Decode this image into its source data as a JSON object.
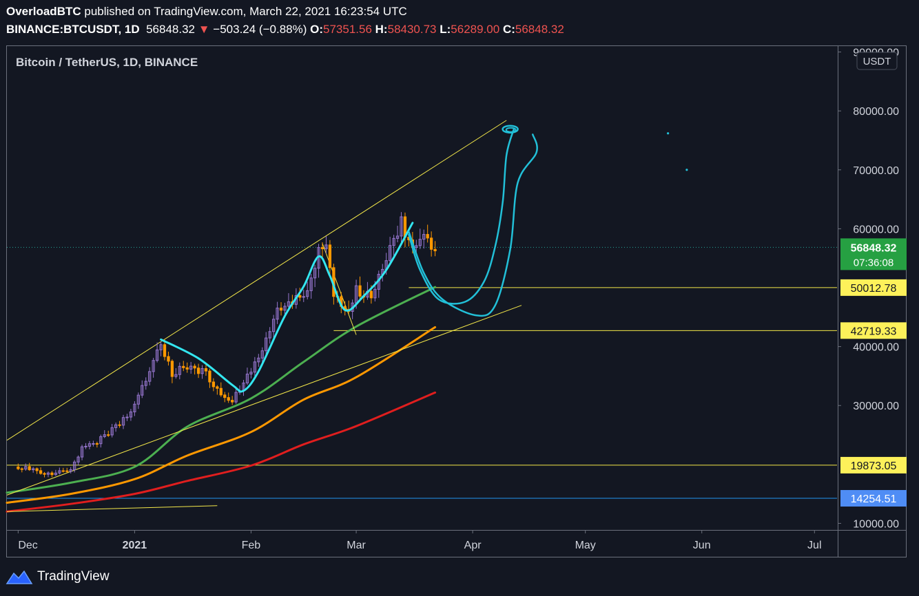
{
  "header": {
    "author": "OverloadBTC",
    "published_text": "published on TradingView.com, March 22, 2021 16:23:54 UTC",
    "symbol": "BINANCE:BTCUSDT, 1D",
    "last": "56848.32",
    "change_arrow": "▼",
    "change": "−503.24 (−0.88%)",
    "o_label": "O:",
    "o_value": "57351.56",
    "h_label": "H:",
    "h_value": "58430.73",
    "l_label": "L:",
    "l_value": "56289.00",
    "c_label": "C:",
    "c_value": "56848.32"
  },
  "footer": {
    "brand": "TradingView"
  },
  "colors": {
    "background": "#131722",
    "up": "#9575cd",
    "down": "#ff9800",
    "ma50": "#4caf50",
    "ma100": "#ff9800",
    "ma200": "#e01e1e",
    "trend": "#f5e94a",
    "drawing": "#22c0d8",
    "drawing_bright": "#33e6f0",
    "last_price_bg": "#26a042",
    "level_bg": "#fdf15a",
    "support_bg": "#4f8df5"
  },
  "chart_data": {
    "type": "candlestick",
    "title": "Bitcoin / TetherUS, 1D, BINANCE",
    "currency_badge": "USDT",
    "x_ticks": [
      "Dec",
      "2021",
      "Feb",
      "Mar",
      "Apr",
      "May",
      "Jun",
      "Jul"
    ],
    "x_tick_dates": [
      "2020-12-01",
      "2021-01-01",
      "2021-02-01",
      "2021-03-01",
      "2021-04-01",
      "2021-05-01",
      "2021-06-01",
      "2021-07-01"
    ],
    "x_range": [
      "2020-11-28",
      "2021-07-07"
    ],
    "y_ticks": [
      10000,
      30000,
      40000,
      60000,
      70000,
      80000,
      90000
    ],
    "y_tick_labels": [
      "10000.00",
      "30000.00",
      "40000.00",
      "60000.00",
      "70000.00",
      "80000.00",
      "90000.00"
    ],
    "ylim": [
      9000,
      91000
    ],
    "last_price": {
      "value": 56848.32,
      "label": "56848.32",
      "countdown": "07:36:08"
    },
    "price_levels": [
      {
        "value": 50012.78,
        "label": "50012.78",
        "from": "2021-03-15"
      },
      {
        "value": 42719.33,
        "label": "42719.33",
        "from": "2021-02-23"
      },
      {
        "value": 19873.05,
        "label": "19873.05",
        "from": "2020-11-28"
      },
      {
        "value": 14254.51,
        "label": "14254.51",
        "from": "2020-11-28"
      }
    ],
    "close_anchors": [
      [
        "2020-11-30",
        19700
      ],
      [
        "2020-12-05",
        19150
      ],
      [
        "2020-12-10",
        18250
      ],
      [
        "2020-12-15",
        19300
      ],
      [
        "2020-12-18",
        22800
      ],
      [
        "2020-12-22",
        23800
      ],
      [
        "2020-12-27",
        26300
      ],
      [
        "2020-12-31",
        29000
      ],
      [
        "2021-01-03",
        33000
      ],
      [
        "2021-01-08",
        40700
      ],
      [
        "2021-01-11",
        35500
      ],
      [
        "2021-01-15",
        36800
      ],
      [
        "2021-01-20",
        35500
      ],
      [
        "2021-01-22",
        33000
      ],
      [
        "2021-01-27",
        30500
      ],
      [
        "2021-01-30",
        34300
      ],
      [
        "2021-02-03",
        37600
      ],
      [
        "2021-02-08",
        46200
      ],
      [
        "2021-02-12",
        47500
      ],
      [
        "2021-02-16",
        49200
      ],
      [
        "2021-02-19",
        55900
      ],
      [
        "2021-02-21",
        57500
      ],
      [
        "2021-02-23",
        48800
      ],
      [
        "2021-02-27",
        46300
      ],
      [
        "2021-03-01",
        49600
      ],
      [
        "2021-03-05",
        48800
      ],
      [
        "2021-03-09",
        54900
      ],
      [
        "2021-03-13",
        61200
      ],
      [
        "2021-03-16",
        56100
      ],
      [
        "2021-03-19",
        58100
      ],
      [
        "2021-03-22",
        56848
      ]
    ],
    "ma50": [
      [
        "2020-11-28",
        15200
      ],
      [
        "2020-12-15",
        16900
      ],
      [
        "2021-01-01",
        19600
      ],
      [
        "2021-01-15",
        26400
      ],
      [
        "2021-02-01",
        31200
      ],
      [
        "2021-02-15",
        37400
      ],
      [
        "2021-03-01",
        43400
      ],
      [
        "2021-03-22",
        50100
      ]
    ],
    "ma100": [
      [
        "2020-11-28",
        13500
      ],
      [
        "2020-12-15",
        15000
      ],
      [
        "2021-01-01",
        17500
      ],
      [
        "2021-01-15",
        21500
      ],
      [
        "2021-02-01",
        25500
      ],
      [
        "2021-02-15",
        31000
      ],
      [
        "2021-03-01",
        34800
      ],
      [
        "2021-03-22",
        43300
      ]
    ],
    "ma200": [
      [
        "2020-11-28",
        12000
      ],
      [
        "2020-12-15",
        13300
      ],
      [
        "2021-01-01",
        15000
      ],
      [
        "2021-01-15",
        17200
      ],
      [
        "2021-02-01",
        19800
      ],
      [
        "2021-02-15",
        23400
      ],
      [
        "2021-03-01",
        26500
      ],
      [
        "2021-03-22",
        32200
      ]
    ],
    "trendlines": [
      [
        [
          "2020-11-28",
          24100
        ],
        [
          "2021-04-10",
          78400
        ]
      ],
      [
        [
          "2020-11-28",
          14800
        ],
        [
          "2021-04-14",
          47000
        ]
      ],
      [
        [
          "2020-11-28",
          12000
        ],
        [
          "2021-01-23",
          13000
        ]
      ],
      [
        [
          "2021-02-20",
          57500
        ],
        [
          "2021-03-01",
          42000
        ]
      ]
    ],
    "drawings": [
      {
        "style": "bright",
        "points": [
          [
            "2021-01-08",
            41200
          ],
          [
            "2021-01-18",
            38000
          ],
          [
            "2021-01-27",
            33500
          ],
          [
            "2021-01-30",
            32500
          ],
          [
            "2021-02-03",
            35800
          ],
          [
            "2021-02-10",
            45200
          ],
          [
            "2021-02-15",
            50200
          ],
          [
            "2021-02-19",
            55300
          ],
          [
            "2021-02-22",
            52000
          ],
          [
            "2021-02-26",
            46200
          ],
          [
            "2021-03-03",
            48600
          ],
          [
            "2021-03-09",
            53000
          ],
          [
            "2021-03-16",
            61000
          ]
        ]
      },
      {
        "style": "normal",
        "points": [
          [
            "2021-03-15",
            59000
          ],
          [
            "2021-03-18",
            53000
          ],
          [
            "2021-03-23",
            48000
          ],
          [
            "2021-03-30",
            47600
          ],
          [
            "2021-04-04",
            51000
          ],
          [
            "2021-04-07",
            57000
          ],
          [
            "2021-04-09",
            64500
          ],
          [
            "2021-04-10",
            72500
          ],
          [
            "2021-04-12",
            77000
          ]
        ]
      },
      {
        "style": "normal",
        "points": [
          [
            "2021-03-15",
            59500
          ],
          [
            "2021-03-19",
            52500
          ],
          [
            "2021-03-24",
            48000
          ],
          [
            "2021-04-02",
            45300
          ],
          [
            "2021-04-07",
            47000
          ],
          [
            "2021-04-11",
            56500
          ],
          [
            "2021-04-13",
            67800
          ],
          [
            "2021-04-18",
            73000
          ],
          [
            "2021-04-17",
            76000
          ]
        ]
      }
    ],
    "marker_points": [
      [
        "2021-05-23",
        76200
      ],
      [
        "2021-05-28",
        70000
      ]
    ]
  }
}
